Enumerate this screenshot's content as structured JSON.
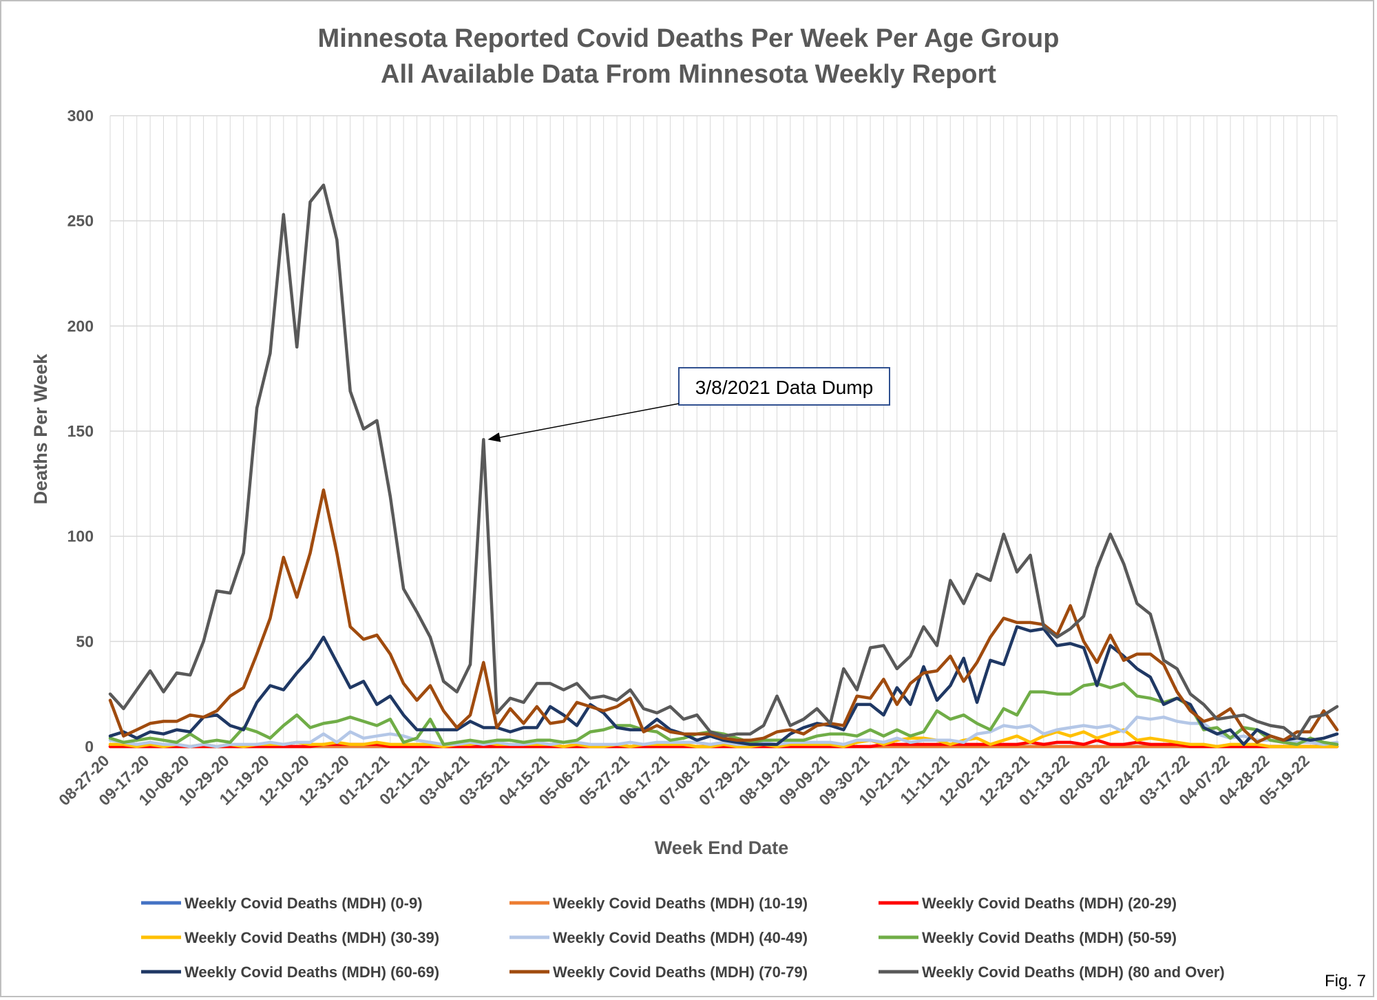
{
  "chart_data": {
    "type": "line",
    "title": "Minnesota Reported Covid Deaths Per Week Per Age Group",
    "subtitle": "All Available Data From Minnesota Weekly Report",
    "xlabel": "Week End Date",
    "ylabel": "Deaths Per Week",
    "ylim": [
      0,
      300
    ],
    "yticks": [
      0,
      50,
      100,
      150,
      200,
      250,
      300
    ],
    "grid": true,
    "legend_position": "bottom",
    "figure_label": "Fig. 7",
    "x_tick_labels": [
      "08-27-20",
      "09-17-20",
      "10-08-20",
      "10-29-20",
      "11-19-20",
      "12-10-20",
      "12-31-20",
      "01-21-21",
      "02-11-21",
      "03-04-21",
      "03-25-21",
      "04-15-21",
      "05-06-21",
      "05-27-21",
      "06-17-21",
      "07-08-21",
      "07-29-21",
      "08-19-21",
      "09-09-21",
      "09-30-21",
      "10-21-21",
      "11-11-21",
      "12-02-21",
      "12-23-21",
      "01-13-22",
      "02-03-22",
      "02-24-22",
      "03-17-22",
      "04-07-22",
      "04-28-22",
      "05-19-22"
    ],
    "annotation": {
      "text": "3/8/2021 Data Dump",
      "point_week": 28,
      "point_value": 146
    },
    "series": [
      {
        "name": "Weekly Covid Deaths (MDH) (0-9)",
        "color": "#4472C4",
        "values": [
          0,
          0,
          0,
          0,
          0,
          0,
          0,
          0,
          0,
          0,
          0,
          0,
          0,
          0,
          0,
          0,
          0,
          0,
          0,
          0,
          0,
          0,
          0,
          0,
          0,
          0,
          0,
          0,
          0,
          0,
          0,
          0,
          0,
          0,
          0,
          0,
          0,
          0,
          0,
          0,
          0,
          0,
          0,
          0,
          0,
          0,
          0,
          0,
          0,
          0,
          0,
          0,
          0,
          0,
          0,
          0,
          0,
          0,
          0,
          0,
          0,
          0,
          0,
          0,
          0,
          0,
          0,
          0,
          0,
          0,
          0,
          0,
          0,
          0,
          0,
          0,
          0,
          0,
          0,
          0,
          0,
          0,
          0,
          0,
          0,
          0,
          0,
          0,
          0,
          0,
          0,
          0,
          0
        ]
      },
      {
        "name": "Weekly Covid Deaths (MDH) (10-19)",
        "color": "#ED7D31",
        "values": [
          0,
          0,
          0,
          0,
          0,
          0,
          0,
          0,
          0,
          0,
          0,
          0,
          0,
          0,
          0,
          0,
          0,
          0,
          0,
          0,
          0,
          0,
          0,
          0,
          0,
          0,
          0,
          0,
          0,
          0,
          0,
          0,
          0,
          0,
          0,
          0,
          0,
          0,
          0,
          0,
          0,
          0,
          0,
          0,
          0,
          0,
          0,
          0,
          0,
          0,
          0,
          0,
          0,
          0,
          0,
          0,
          0,
          0,
          0,
          0,
          0,
          0,
          0,
          0,
          0,
          0,
          0,
          0,
          0,
          0,
          0,
          0,
          0,
          0,
          0,
          0,
          0,
          0,
          0,
          0,
          0,
          0,
          0,
          0,
          0,
          0,
          0,
          0,
          0,
          0,
          0,
          0,
          0
        ]
      },
      {
        "name": "Weekly Covid Deaths (MDH) (20-29)",
        "color": "#FF0000",
        "values": [
          0,
          0,
          0,
          0,
          0,
          0,
          0,
          0,
          0,
          0,
          0,
          0,
          0,
          0,
          0,
          0,
          1,
          1,
          1,
          1,
          1,
          0,
          0,
          0,
          0,
          0,
          0,
          0,
          0,
          0,
          0,
          0,
          0,
          0,
          0,
          0,
          0,
          0,
          0,
          0,
          0,
          0,
          0,
          0,
          0,
          0,
          0,
          0,
          0,
          0,
          0,
          0,
          0,
          0,
          0,
          0,
          0,
          0,
          1,
          1,
          1,
          1,
          1,
          1,
          1,
          1,
          1,
          1,
          1,
          2,
          1,
          2,
          2,
          1,
          3,
          1,
          1,
          2,
          1,
          1,
          1,
          0,
          0,
          0,
          0,
          0,
          0,
          0,
          0,
          0,
          0,
          0,
          0
        ]
      },
      {
        "name": "Weekly Covid Deaths (MDH) (30-39)",
        "color": "#FFC000",
        "values": [
          1,
          1,
          0,
          1,
          0,
          1,
          0,
          1,
          0,
          1,
          0,
          1,
          1,
          1,
          2,
          1,
          1,
          2,
          1,
          1,
          2,
          1,
          1,
          1,
          1,
          0,
          1,
          1,
          2,
          1,
          1,
          1,
          1,
          1,
          0,
          1,
          0,
          0,
          1,
          0,
          1,
          1,
          1,
          1,
          0,
          0,
          1,
          0,
          0,
          1,
          0,
          1,
          1,
          1,
          1,
          0,
          2,
          3,
          1,
          3,
          4,
          4,
          3,
          1,
          3,
          4,
          1,
          3,
          5,
          2,
          5,
          7,
          5,
          7,
          4,
          6,
          8,
          3,
          4,
          3,
          2,
          1,
          1,
          0,
          1,
          1,
          1,
          0,
          0,
          0,
          0,
          0,
          0
        ]
      },
      {
        "name": "Weekly Covid Deaths (MDH) (40-49)",
        "color": "#B4C7E7",
        "values": [
          3,
          2,
          1,
          2,
          1,
          1,
          0,
          1,
          0,
          1,
          1,
          1,
          2,
          1,
          2,
          2,
          6,
          2,
          7,
          4,
          5,
          6,
          5,
          3,
          2,
          1,
          1,
          2,
          1,
          2,
          1,
          1,
          2,
          1,
          2,
          2,
          1,
          1,
          1,
          2,
          1,
          2,
          2,
          2,
          2,
          1,
          2,
          1,
          1,
          2,
          1,
          2,
          2,
          2,
          2,
          1,
          3,
          3,
          2,
          4,
          2,
          3,
          3,
          3,
          2,
          6,
          7,
          10,
          9,
          10,
          6,
          8,
          9,
          10,
          9,
          10,
          7,
          14,
          13,
          14,
          12,
          11,
          11,
          6,
          4,
          5,
          3,
          3,
          2,
          2,
          2,
          1,
          2
        ]
      },
      {
        "name": "Weekly Covid Deaths (MDH) (50-59)",
        "color": "#70AD47",
        "values": [
          4,
          2,
          3,
          4,
          3,
          2,
          6,
          2,
          3,
          2,
          9,
          7,
          4,
          10,
          15,
          9,
          11,
          12,
          14,
          12,
          10,
          13,
          2,
          4,
          13,
          1,
          2,
          3,
          2,
          3,
          3,
          2,
          3,
          3,
          2,
          3,
          7,
          8,
          10,
          10,
          8,
          7,
          3,
          4,
          6,
          7,
          6,
          4,
          2,
          3,
          3,
          3,
          3,
          5,
          6,
          6,
          5,
          8,
          5,
          8,
          5,
          7,
          17,
          13,
          15,
          11,
          8,
          18,
          15,
          26,
          26,
          25,
          25,
          29,
          30,
          28,
          30,
          24,
          23,
          21,
          23,
          19,
          8,
          9,
          4,
          9,
          8,
          3,
          2,
          1,
          4,
          2,
          1
        ]
      },
      {
        "name": "Weekly Covid Deaths (MDH) (60-69)",
        "color": "#1F3864",
        "values": [
          5,
          7,
          4,
          7,
          6,
          8,
          7,
          14,
          15,
          10,
          8,
          21,
          29,
          27,
          35,
          42,
          52,
          40,
          28,
          31,
          20,
          24,
          15,
          8,
          8,
          8,
          8,
          12,
          9,
          9,
          7,
          9,
          9,
          19,
          15,
          10,
          20,
          16,
          9,
          8,
          8,
          13,
          8,
          6,
          3,
          5,
          3,
          2,
          1,
          1,
          1,
          6,
          9,
          11,
          10,
          8,
          20,
          20,
          15,
          28,
          20,
          38,
          22,
          29,
          42,
          21,
          41,
          39,
          57,
          55,
          56,
          48,
          49,
          47,
          29,
          48,
          43,
          37,
          33,
          20,
          23,
          20,
          9,
          6,
          8,
          1,
          8,
          5,
          3,
          4,
          3,
          4,
          6
        ]
      },
      {
        "name": "Weekly Covid Deaths (MDH) (70-79)",
        "color": "#A04B0E",
        "values": [
          22,
          5,
          8,
          11,
          12,
          12,
          15,
          14,
          17,
          24,
          28,
          44,
          61,
          90,
          71,
          92,
          122,
          92,
          57,
          51,
          53,
          44,
          30,
          22,
          29,
          17,
          9,
          15,
          40,
          9,
          18,
          11,
          19,
          11,
          12,
          21,
          19,
          17,
          19,
          23,
          7,
          10,
          7,
          6,
          6,
          6,
          4,
          3,
          3,
          4,
          7,
          8,
          6,
          10,
          11,
          10,
          24,
          23,
          32,
          20,
          30,
          35,
          36,
          43,
          31,
          40,
          52,
          61,
          59,
          59,
          58,
          53,
          67,
          50,
          40,
          53,
          41,
          44,
          44,
          39,
          26,
          17,
          12,
          14,
          18,
          8,
          2,
          5,
          3,
          7,
          7,
          17,
          8
        ]
      },
      {
        "name": "Weekly Covid Deaths (MDH) (80 and Over)",
        "color": "#595959",
        "values": [
          25,
          18,
          27,
          36,
          26,
          35,
          34,
          50,
          74,
          73,
          92,
          161,
          187,
          253,
          190,
          259,
          267,
          241,
          169,
          151,
          155,
          119,
          75,
          64,
          52,
          31,
          26,
          39,
          146,
          16,
          23,
          21,
          30,
          30,
          27,
          30,
          23,
          24,
          22,
          27,
          18,
          16,
          19,
          13,
          15,
          7,
          5,
          6,
          6,
          10,
          24,
          10,
          13,
          18,
          11,
          37,
          27,
          47,
          48,
          37,
          43,
          57,
          48,
          79,
          68,
          82,
          79,
          101,
          83,
          91,
          57,
          52,
          56,
          62,
          85,
          101,
          87,
          68,
          63,
          41,
          37,
          25,
          20,
          13,
          14,
          15,
          12,
          10,
          9,
          4,
          14,
          15,
          19
        ]
      }
    ]
  }
}
